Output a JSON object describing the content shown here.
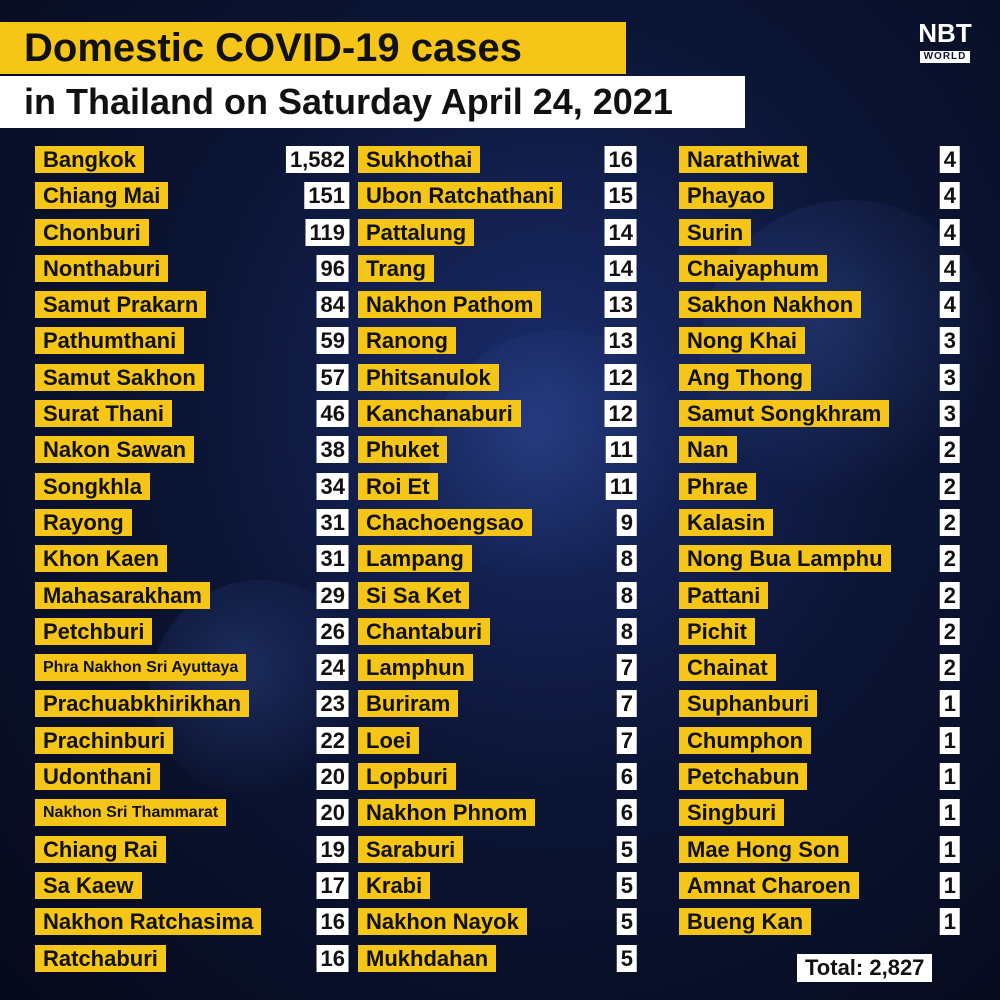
{
  "header": {
    "title_line1": "Domestic COVID-19 cases",
    "title_line2": "in Thailand on Saturday April 24, 2021"
  },
  "logo": {
    "brand": "NBT",
    "sub": "WORLD"
  },
  "columns": [
    [
      {
        "province": "Bangkok",
        "cases": "1,582"
      },
      {
        "province": "Chiang Mai",
        "cases": "151"
      },
      {
        "province": "Chonburi",
        "cases": "119"
      },
      {
        "province": "Nonthaburi",
        "cases": "96"
      },
      {
        "province": "Samut Prakarn",
        "cases": "84"
      },
      {
        "province": "Pathumthani",
        "cases": "59"
      },
      {
        "province": "Samut Sakhon",
        "cases": "57"
      },
      {
        "province": "Surat Thani",
        "cases": "46"
      },
      {
        "province": "Nakon Sawan",
        "cases": "38"
      },
      {
        "province": "Songkhla",
        "cases": "34"
      },
      {
        "province": "Rayong",
        "cases": "31"
      },
      {
        "province": "Khon Kaen",
        "cases": "31"
      },
      {
        "province": "Mahasarakham",
        "cases": "29"
      },
      {
        "province": "Petchburi",
        "cases": "26"
      },
      {
        "province": "Phra Nakhon Sri Ayuttaya",
        "cases": "24"
      },
      {
        "province": "Prachuabkhirikhan",
        "cases": "23"
      },
      {
        "province": "Prachinburi",
        "cases": "22"
      },
      {
        "province": "Udonthani",
        "cases": "20"
      },
      {
        "province": "Nakhon Sri Thammarat",
        "cases": "20"
      },
      {
        "province": "Chiang Rai",
        "cases": "19"
      },
      {
        "province": "Sa Kaew",
        "cases": "17"
      },
      {
        "province": "Nakhon Ratchasima",
        "cases": "16"
      },
      {
        "province": "Ratchaburi",
        "cases": "16"
      }
    ],
    [
      {
        "province": "Sukhothai",
        "cases": "16"
      },
      {
        "province": "Ubon Ratchathani",
        "cases": "15"
      },
      {
        "province": "Pattalung",
        "cases": "14"
      },
      {
        "province": "Trang",
        "cases": "14"
      },
      {
        "province": "Nakhon Pathom",
        "cases": "13"
      },
      {
        "province": "Ranong",
        "cases": "13"
      },
      {
        "province": "Phitsanulok",
        "cases": "12"
      },
      {
        "province": "Kanchanaburi",
        "cases": "12"
      },
      {
        "province": "Phuket",
        "cases": "11"
      },
      {
        "province": "Roi Et",
        "cases": "11"
      },
      {
        "province": "Chachoengsao",
        "cases": "9"
      },
      {
        "province": "Lampang",
        "cases": "8"
      },
      {
        "province": "Si Sa Ket",
        "cases": "8"
      },
      {
        "province": "Chantaburi",
        "cases": "8"
      },
      {
        "province": "Lamphun",
        "cases": "7"
      },
      {
        "province": "Buriram",
        "cases": "7"
      },
      {
        "province": "Loei",
        "cases": "7"
      },
      {
        "province": "Lopburi",
        "cases": "6"
      },
      {
        "province": "Nakhon Phnom",
        "cases": "6"
      },
      {
        "province": "Saraburi",
        "cases": "5"
      },
      {
        "province": "Krabi",
        "cases": "5"
      },
      {
        "province": "Nakhon Nayok",
        "cases": "5"
      },
      {
        "province": "Mukhdahan",
        "cases": "5"
      }
    ],
    [
      {
        "province": "Narathiwat",
        "cases": "4"
      },
      {
        "province": "Phayao",
        "cases": "4"
      },
      {
        "province": "Surin",
        "cases": "4"
      },
      {
        "province": "Chaiyaphum",
        "cases": "4"
      },
      {
        "province": "Sakhon Nakhon",
        "cases": "4"
      },
      {
        "province": "Nong Khai",
        "cases": "3"
      },
      {
        "province": "Ang Thong",
        "cases": "3"
      },
      {
        "province": "Samut Songkhram",
        "cases": "3"
      },
      {
        "province": "Nan",
        "cases": "2"
      },
      {
        "province": "Phrae",
        "cases": "2"
      },
      {
        "province": "Kalasin",
        "cases": "2"
      },
      {
        "province": "Nong Bua Lamphu",
        "cases": "2"
      },
      {
        "province": "Pattani",
        "cases": "2"
      },
      {
        "province": "Pichit",
        "cases": "2"
      },
      {
        "province": "Chainat",
        "cases": "2"
      },
      {
        "province": "Suphanburi",
        "cases": "1"
      },
      {
        "province": "Chumphon",
        "cases": "1"
      },
      {
        "province": "Petchabun",
        "cases": "1"
      },
      {
        "province": "Singburi",
        "cases": "1"
      },
      {
        "province": "Mae Hong Son",
        "cases": "1"
      },
      {
        "province": "Amnat Charoen",
        "cases": "1"
      },
      {
        "province": "Bueng Kan",
        "cases": "1"
      }
    ]
  ],
  "total": "Total: 2,827",
  "colors": {
    "accent": "#f5c518",
    "background": "#0c1536",
    "value_box": "#ffffff"
  }
}
